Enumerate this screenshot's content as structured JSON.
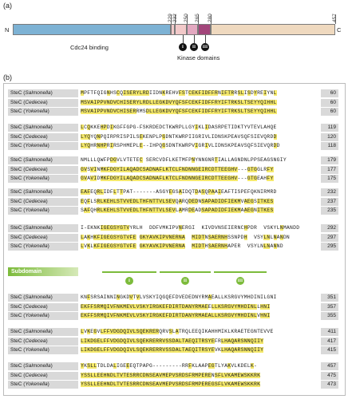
{
  "panel_a_label": "(a)",
  "panel_b_label": "(b)",
  "domain_map": {
    "n_term": "N",
    "c_term": "C",
    "positions": [
      "229",
      "232",
      "250",
      "265",
      "280",
      "457"
    ],
    "cdc24_label": "Cdc24 binding",
    "kinase_label": "Kinase domains",
    "subdomains": [
      "I",
      "II",
      "III"
    ],
    "colors": {
      "cdc24": "#7db2d4",
      "linker": "#f2c9c9",
      "kinase": "#c98aa6",
      "kinase3": "#a2457a",
      "tail": "#efd9bf"
    }
  },
  "alignment": {
    "blocks": [
      {
        "rows": [
          {
            "species": "Salmonella",
            "seq": "MPFTFQIGNHSCQISERYLRDIIDNKREHVFSTCEKFIDFFRNIFTRRSLISDYREIYNL",
            "end": "60"
          },
          {
            "species": "Cedecea",
            "seq": "MSVAIPPVNDVCHISERYLRDLLEGKDVYQFSFCEKFIDFFRYIFTRKSLTSEYYQIHHL",
            "end": "60"
          },
          {
            "species": "Yokenella",
            "seq": "MSVAIPPVNDVCHISERRMSDLLEGKDVYQFSFCEKFIDFFRYIFTRKSLTSEYYQIHHL",
            "end": "60"
          }
        ]
      },
      {
        "rows": [
          {
            "species": "Salmonella",
            "seq": "LCQKKEHPDIKGFFGPG-FSKRDEDCTKWRPLLGYIKLIDASRPETIDKTYVTEVLAHQE",
            "end": "119"
          },
          {
            "species": "Cedecea",
            "seq": "LYQYQNPQIRPRISPILSEKENPLPGDNTKWRPIIGRIVLIDNSKPEAVSQFSIEVQRDD",
            "end": "120"
          },
          {
            "species": "Yokenella",
            "seq": "LYQHRNHPRIRSPHMEPLE--IHPQGSDNTKWRPVIGRIVLIDNSKPEAVSQFSIEVQRDD",
            "end": "118"
          }
        ]
      },
      {
        "rows": [
          {
            "species": "Salmonella",
            "seq": "NMLLLQWFPDGVLVTETEC SERCVDFLKETMFPNYNNGNRTIALLAGNDNLPPSEAGSNGIY",
            "end": "179"
          },
          {
            "species": "Cedecea",
            "seq": "GVSVINMKFDGYILAQADCSADNAFLKTCLFNDNNGEIRCDTTEEGHV---GTGGLRFY",
            "end": "177"
          },
          {
            "species": "Yokenella",
            "seq": "GVAVIDMKFDGYILAQADCSADNAFLKTCLFNDNNGEIRCDTTEEGHV---GTGEAHFY",
            "end": "175"
          }
        ]
      },
      {
        "rows": [
          {
            "species": "Salmonella",
            "seq": "EAFEQRLIDFLTTPAT-------ASGYEGSAIDQTDASQPAAIEAFTISPEFQKNIRMRD",
            "end": "232"
          },
          {
            "species": "Cedecea",
            "seq": "EQFLSRLKEHLSTVVEDLTHFNTTVLSEVQARQDEDNSAPADIDFIEKMVAEGSITKES",
            "end": "237"
          },
          {
            "species": "Yokenella",
            "seq": "SAFQHRLKEHLSTVVEDLTHFNTTVLSEVLAMRDEADSAPADIDFIEKMAAEGNITKES",
            "end": "235"
          }
        ]
      },
      {
        "rows": [
          {
            "species": "Salmonella",
            "seq": "I-EKNKIGEGSYGTVYRLH  DDFVMKIPVNERGI  KIVDVNSEIERNCHPDR  VSKYLNMANDD",
            "end": "292"
          },
          {
            "species": "Cedecea",
            "seq": "LAKHKFIGEGSYGTVFE GKYAVKIPVNERNA  MIDTNSAERNHSSNPDH  VSYLNLNANDN",
            "end": "297"
          },
          {
            "species": "Yokenella",
            "seq": "LVKLKFIGEGSYGTVFE GKYAVKIPVNERNA  MIDTHSAERNHAPER  VSYLNLNANND",
            "end": "295"
          }
        ]
      },
      {
        "rows": [
          {
            "species": "Salmonella",
            "seq": "KNFSRSAINNINGKDVTVLVSKYIQGQEFDVEDEDNYRMAEALLKSRGVYMHDINILGNI",
            "end": "351"
          },
          {
            "species": "Cedecea",
            "seq": "EKFFSRMQIVFNKMEVLVSKYIRGKEFDIRTDANYRMAEELLKSRGVYMHDINLLHNI",
            "end": "357"
          },
          {
            "species": "Yokenella",
            "seq": "EKFFSRMQIVFNKMEVLVSKYIRGKEFDIRTDANYRMAEALLKSRGVYMHDINLVHNI",
            "end": "355"
          }
        ]
      },
      {
        "rows": [
          {
            "species": "Salmonella",
            "seq": "LVKEGVLFFVDGDQIVLSQEKRERQRVSLATRQLEEQIKAHHMIKLKRAETEGNTEVVE",
            "end": "411"
          },
          {
            "species": "Cedecea",
            "seq": "LIKDGELFFVDGDQIVLSQEKRERRVSSDALTAEQITRSYEFRLHAQARSNNQIIY",
            "end": "417"
          },
          {
            "species": "Yokenella",
            "seq": "LIKDGELFFVDGDQIVLSQEKRERRVSSDALTAEQITRSYEVKLHAQARSNNQIIY",
            "end": "415"
          }
        ]
      },
      {
        "rows": [
          {
            "species": "Salmonella",
            "seq": "YKSLLTDLDALIGEEEQTPAPG---------RRFKLAAPEGTLYAKVLKDELK-",
            "end": "457"
          },
          {
            "species": "Cedecea",
            "seq": "YSSLLEEHNDLTVTESRRCDNSEAVMEPVSRDSFRMPERENSFLVKAMEWSKKRK",
            "end": "475"
          },
          {
            "species": "Yokenella",
            "seq": "YSSLLEEHNDLTVTESRRCDNSEAVMEPVSRDSFRMPEREGSFLVKAMEWSKKRK",
            "end": "473"
          }
        ]
      }
    ],
    "subdomain_label": "Subdomain",
    "highlight_color": "#f5e96b"
  }
}
